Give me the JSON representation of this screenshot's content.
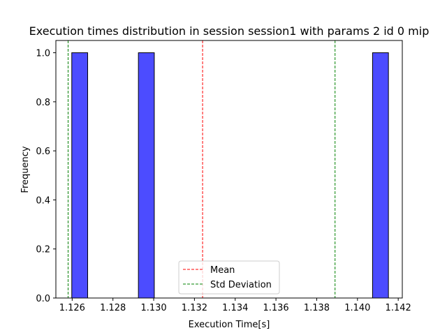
{
  "chart_data": {
    "type": "histogram",
    "title": "Execution times distribution in session session1 with params 2 id 0 mip",
    "xlabel": "Execution Time[s]",
    "ylabel": "Frequency",
    "xlim": [
      1.1252,
      1.1422
    ],
    "ylim": [
      0.0,
      1.05
    ],
    "xticks": [
      1.126,
      1.128,
      1.13,
      1.132,
      1.134,
      1.136,
      1.138,
      1.14,
      1.142
    ],
    "xtick_labels": [
      "1.126",
      "1.128",
      "1.130",
      "1.132",
      "1.134",
      "1.136",
      "1.138",
      "1.140",
      "1.142"
    ],
    "yticks": [
      0.0,
      0.2,
      0.4,
      0.6,
      0.8,
      1.0
    ],
    "ytick_labels": [
      "0.0",
      "0.2",
      "0.4",
      "0.6",
      "0.8",
      "1.0"
    ],
    "bins": [
      {
        "start": 1.12598,
        "end": 1.12676,
        "count": 1
      },
      {
        "start": 1.12925,
        "end": 1.13003,
        "count": 1
      },
      {
        "start": 1.14074,
        "end": 1.14152,
        "count": 1
      }
    ],
    "bar_color": "#0000ff",
    "bar_edge_color": "#000000",
    "mean": 1.1324,
    "std_lines": [
      1.1258,
      1.1389
    ],
    "mean_color": "#ff0000",
    "std_color": "#008000",
    "legend": {
      "position": "lower-center",
      "entries": [
        {
          "label": "Mean",
          "color": "#ff0000"
        },
        {
          "label": "Std Deviation",
          "color": "#008000"
        }
      ]
    }
  }
}
